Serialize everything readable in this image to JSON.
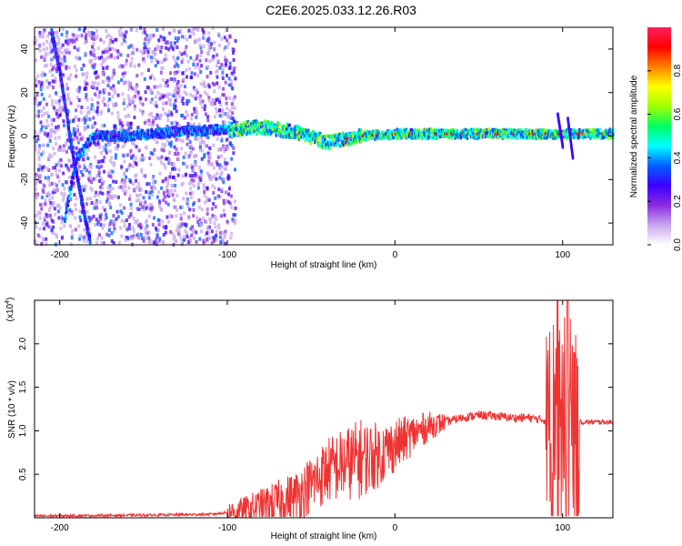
{
  "title": "C2E6.2025.033.12.26.R03",
  "chart_data": [
    {
      "type": "heatmap",
      "xlabel": "Height of straight line (km)",
      "ylabel": "Frequency (Hz)",
      "xlim": [
        -215,
        130
      ],
      "ylim": [
        -50,
        50
      ],
      "xticks": [
        -200,
        -100,
        0,
        100
      ],
      "yticks": [
        -40,
        -20,
        0,
        20,
        40
      ],
      "colorbar": {
        "label": "Normalized spectral amplitude",
        "range": [
          0,
          1
        ],
        "ticks": [
          "0.0",
          "0.2",
          "0.4",
          "0.6",
          "0.8"
        ],
        "colormap": [
          "#ffffff",
          "#c9a6ee",
          "#8a2be2",
          "#3a00ff",
          "#0060ff",
          "#00ffff",
          "#00ff60",
          "#a0ff00",
          "#ffff00",
          "#ff8000",
          "#ff0000",
          "#ff2060"
        ]
      },
      "ridges": [
        {
          "name": "",
          "x": [
            -205,
            -200,
            -196,
            -192,
            -188,
            -185,
            -182
          ],
          "y": [
            48,
            30,
            10,
            -10,
            -25,
            -38,
            -48
          ]
        },
        {
          "name": "",
          "x": [
            -197,
            -190,
            -180,
            -160,
            -130,
            -100,
            -80,
            -60,
            -40,
            -20,
            0,
            20,
            60,
            100,
            130
          ],
          "y": [
            -38,
            -10,
            0,
            0,
            2,
            3,
            4,
            2,
            -3,
            0,
            1,
            1,
            1,
            1,
            1
          ]
        }
      ]
    },
    {
      "type": "line",
      "xlabel": "Height of straight line (km)",
      "ylabel": "SNR (10 * v/v)",
      "y_scale_label": "(x10",
      "y_scale_exp": "4",
      "xlim": [
        -215,
        130
      ],
      "ylim": [
        0,
        2.5
      ],
      "xticks": [
        -200,
        -100,
        0,
        100
      ],
      "yticks": [
        "0.5",
        "1.0",
        "1.5",
        "2.0"
      ],
      "color": "#ee3333",
      "envelope": {
        "x": [
          -215,
          -150,
          -110,
          -90,
          -80,
          -70,
          -60,
          -50,
          -40,
          -30,
          -20,
          -10,
          0,
          10,
          20,
          30,
          40,
          50,
          60,
          70,
          80,
          90,
          95,
          100,
          105,
          110,
          120,
          130
        ],
        "y": [
          0.02,
          0.03,
          0.04,
          0.08,
          0.13,
          0.18,
          0.24,
          0.38,
          0.55,
          0.62,
          0.68,
          0.72,
          0.83,
          0.95,
          1.05,
          1.1,
          1.15,
          1.18,
          1.17,
          1.15,
          1.15,
          1.12,
          1.3,
          1.3,
          1.2,
          1.1,
          1.1,
          1.1
        ]
      },
      "peak_events": [
        {
          "x": 97,
          "y": 2.5
        },
        {
          "x": 103,
          "y": 2.5
        },
        {
          "x": 107,
          "y": 1.9
        }
      ]
    }
  ]
}
